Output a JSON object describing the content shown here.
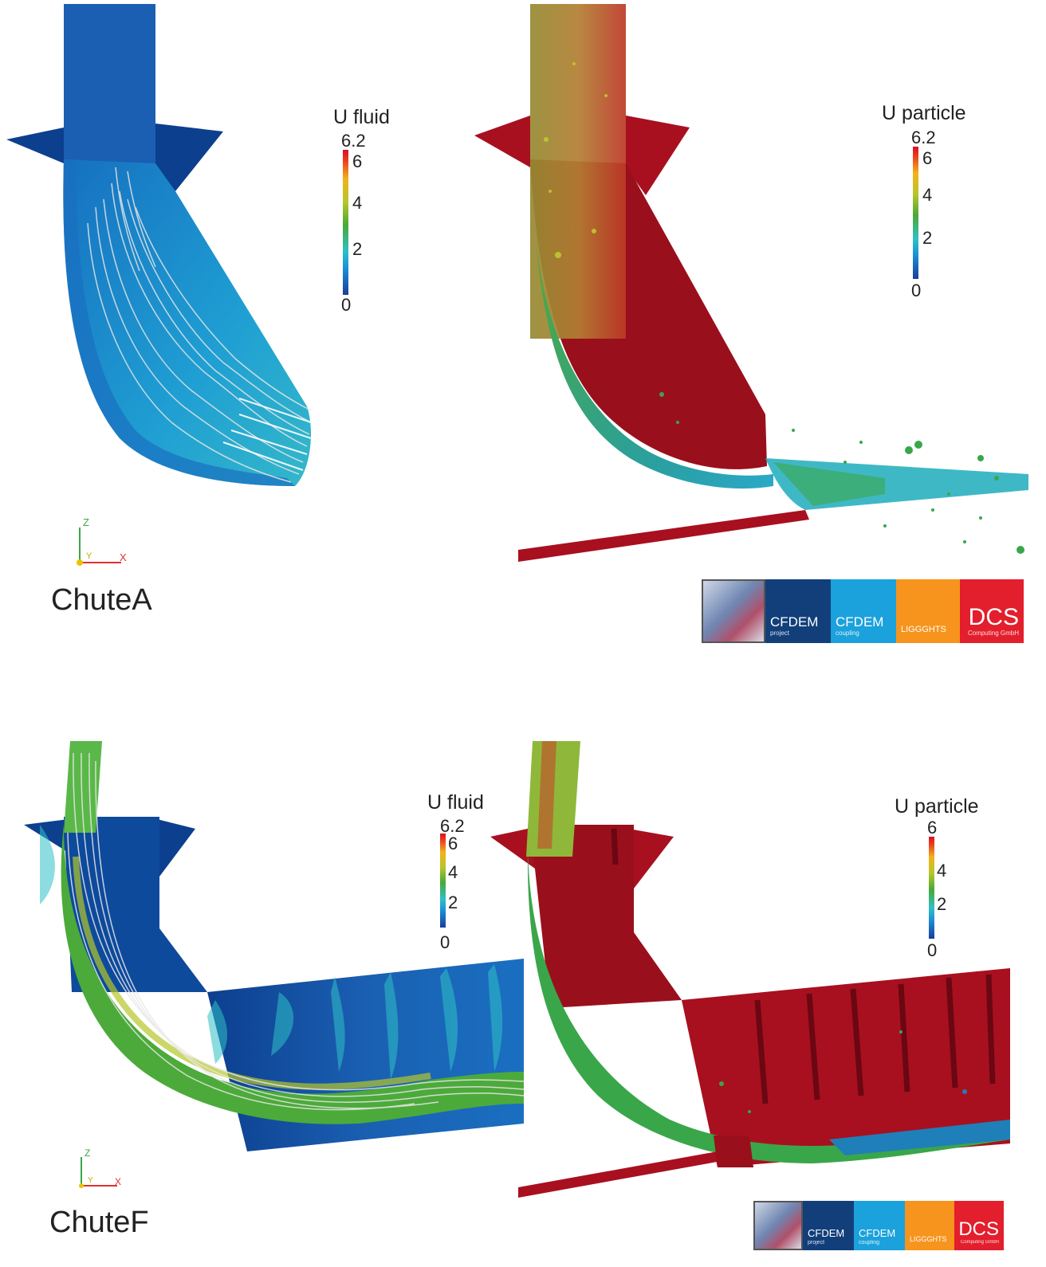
{
  "panels": {
    "a_fluid": {
      "legend_title": "U fluid",
      "legend_max": "6.2",
      "ticks": [
        "6",
        "4",
        "2",
        "0"
      ],
      "case_label": "ChuteA",
      "axis_labels": {
        "z": "Z",
        "y": "Y",
        "x": "X"
      }
    },
    "a_particle": {
      "legend_title": "U particle",
      "legend_max": "6.2",
      "ticks": [
        "6",
        "4",
        "2",
        "0"
      ]
    },
    "f_fluid": {
      "legend_title": "U fluid",
      "legend_max": "6.2",
      "ticks": [
        "6",
        "4",
        "2",
        "0"
      ],
      "case_label": "ChuteF",
      "axis_labels": {
        "z": "Z",
        "y": "Y",
        "x": "X"
      }
    },
    "f_particle": {
      "legend_title": "U particle",
      "ticks": [
        "6",
        "4",
        "2",
        "0"
      ]
    }
  },
  "logo": {
    "tiles": [
      {
        "big": "CFDEM",
        "small": "project",
        "color": "#123f7a"
      },
      {
        "big": "CFDEM",
        "small": "coupling",
        "color": "#1ba1dc"
      },
      {
        "big": "LIGGGHTS",
        "small": "",
        "color": "#f7941d"
      },
      {
        "big": "DCS",
        "small": "Computing GmbH",
        "color": "#e31e2d"
      }
    ]
  },
  "colors": {
    "fluid_low": "#0d3f8f",
    "particle_wall": "#a8101f",
    "streamline": "#d8d8d8"
  }
}
